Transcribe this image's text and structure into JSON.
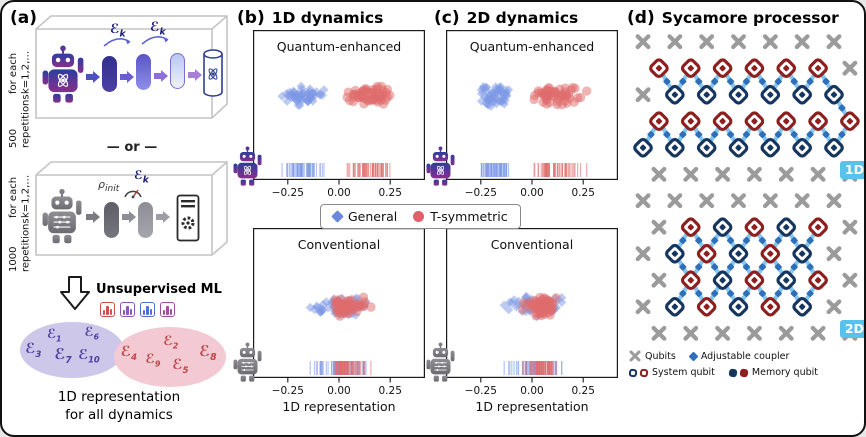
{
  "figure": {
    "background": "#ffffff",
    "border_color": "#111111"
  },
  "panel_a": {
    "label": "(a)",
    "rotated_caption_top": [
      "500 repetitions",
      "for each k=1,2,…"
    ],
    "rotated_caption_bottom": [
      "1000 repetitions",
      "for each k=1,2,…"
    ],
    "or_text": "— or —",
    "script_e": "ℰ",
    "script_e_sub": "k",
    "rho_base": "ρ",
    "rho_sub": "init",
    "unsupervised_ml": "Unsupervised ML",
    "ml_icon_colors": [
      "#cf4f4f",
      "#8a56b8",
      "#4f6fcf",
      "#a04fa0"
    ],
    "purple_set": [
      {
        "base": "ℰ",
        "sub": "3"
      },
      {
        "base": "ℰ",
        "sub": "1"
      },
      {
        "base": "ℰ",
        "sub": "7"
      },
      {
        "base": "ℰ",
        "sub": "6"
      },
      {
        "base": "ℰ",
        "sub": "10"
      }
    ],
    "pink_set": [
      {
        "base": "ℰ",
        "sub": "4"
      },
      {
        "base": "ℰ",
        "sub": "9"
      },
      {
        "base": "ℰ",
        "sub": "2"
      },
      {
        "base": "ℰ",
        "sub": "5"
      },
      {
        "base": "ℰ",
        "sub": "8"
      }
    ],
    "purple_color": "#4b3fa0",
    "pink_color": "#c04545",
    "purple_ellipse_bg": "#cdc7ea",
    "pink_ellipse_bg": "#f3c9d4",
    "bottom_caption": [
      "1D representation",
      "for all dynamics"
    ]
  },
  "panel_b": {
    "label": "(b)",
    "title": "1D dynamics",
    "xlabel": "1D representation"
  },
  "panel_c": {
    "label": "(c)",
    "title": "2D dynamics",
    "xlabel": "1D representation"
  },
  "legend": {
    "items": [
      {
        "label": "General",
        "marker": "diamond",
        "color": "#6a88e0"
      },
      {
        "label": "T-symmetric",
        "marker": "circle",
        "color": "#e0606a"
      }
    ]
  },
  "panel_d": {
    "label": "(d)",
    "title": "Sycamore processor",
    "badges": [
      "1D",
      "2D"
    ],
    "badge_color": "#59c2ea",
    "legend": [
      {
        "icon": "cross-icon",
        "label": "Qubits"
      },
      {
        "icon": "coupler-icon",
        "label": "Adjustable coupler"
      },
      {
        "icon": "system-qubit-pair-icon",
        "label": "System qubit"
      },
      {
        "icon": "memory-qubit-pair-icon",
        "label": "Memory qubit"
      }
    ],
    "colors": {
      "cross": "#9b9b9b",
      "coupler": "#2f6fba",
      "wire": "#85c6ee",
      "qubit_red": "#8e1f1f",
      "qubit_blue": "#17365e"
    }
  },
  "chart_data": [
    {
      "id": "b_top",
      "panel": "(b) 1D dynamics",
      "title": "Quantum-enhanced",
      "type": "scatter",
      "xlim": [
        -0.42,
        0.42
      ],
      "xticks": [
        -0.25,
        0.0,
        0.25
      ],
      "xtick_labels": [
        "−0.25",
        "0.00",
        "0.25"
      ],
      "xlabel": "1D representation",
      "y_band": 0.44,
      "rug": true,
      "series": [
        {
          "name": "General",
          "marker": "diamond",
          "color": "#7c98e6",
          "x_center": -0.17,
          "x_spread": 0.1,
          "count": 55,
          "seed": 11
        },
        {
          "name": "T-symmetric",
          "marker": "circle",
          "color": "#e06b6b",
          "x_center": 0.16,
          "x_spread": 0.11,
          "count": 55,
          "seed": 22
        }
      ]
    },
    {
      "id": "b_bottom",
      "panel": "(b) 1D dynamics",
      "title": "Conventional",
      "type": "scatter",
      "xlim": [
        -0.42,
        0.42
      ],
      "xticks": [
        -0.25,
        0.0,
        0.25
      ],
      "xtick_labels": [
        "−0.25",
        "0.00",
        "0.25"
      ],
      "xlabel": "1D representation",
      "y_band": 0.52,
      "rug": true,
      "series": [
        {
          "name": "General",
          "marker": "diamond",
          "color": "#7c98e6",
          "x_center": 0.0,
          "x_spread": 0.15,
          "count": 55,
          "seed": 33
        },
        {
          "name": "T-symmetric",
          "marker": "circle",
          "color": "#e06b6b",
          "x_center": 0.04,
          "x_spread": 0.09,
          "count": 55,
          "seed": 44
        }
      ]
    },
    {
      "id": "c_top",
      "panel": "(c) 2D dynamics",
      "title": "Quantum-enhanced",
      "type": "scatter",
      "xlim": [
        -0.42,
        0.42
      ],
      "xticks": [
        -0.25,
        0.0,
        0.25
      ],
      "xtick_labels": [
        "−0.25",
        "0.00",
        "0.25"
      ],
      "xlabel": "1D representation",
      "y_band": 0.44,
      "rug": true,
      "series": [
        {
          "name": "General",
          "marker": "diamond",
          "color": "#7c98e6",
          "x_center": -0.18,
          "x_spread": 0.09,
          "count": 55,
          "seed": 55
        },
        {
          "name": "T-symmetric",
          "marker": "circle",
          "color": "#e06b6b",
          "x_center": 0.13,
          "x_spread": 0.11,
          "count": 55,
          "seed": 66
        }
      ]
    },
    {
      "id": "c_bottom",
      "panel": "(c) 2D dynamics",
      "title": "Conventional",
      "type": "scatter",
      "xlim": [
        -0.42,
        0.42
      ],
      "xticks": [
        -0.25,
        0.0,
        0.25
      ],
      "xtick_labels": [
        "−0.25",
        "0.00",
        "0.25"
      ],
      "xlabel": "1D representation",
      "y_band": 0.52,
      "rug": true,
      "series": [
        {
          "name": "General",
          "marker": "diamond",
          "color": "#7c98e6",
          "x_center": 0.02,
          "x_spread": 0.13,
          "count": 55,
          "seed": 77
        },
        {
          "name": "T-symmetric",
          "marker": "circle",
          "color": "#e06b6b",
          "x_center": 0.05,
          "x_spread": 0.085,
          "count": 55,
          "seed": 88
        }
      ]
    }
  ]
}
